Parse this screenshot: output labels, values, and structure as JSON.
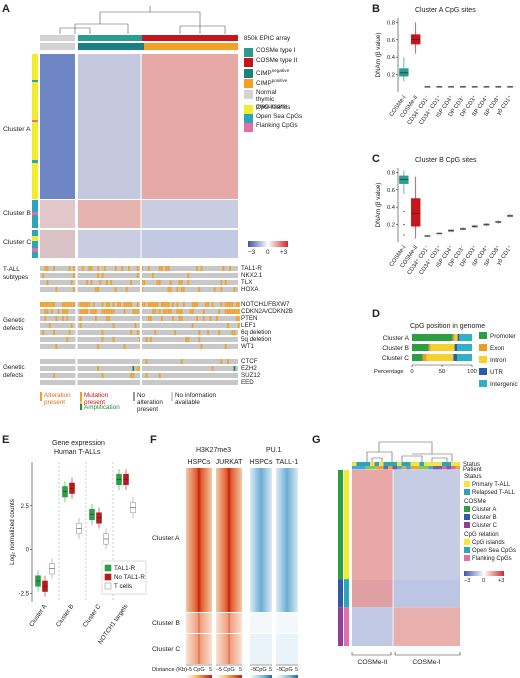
{
  "panels": {
    "A": "A",
    "B": "B",
    "C": "C",
    "D": "D",
    "E": "E",
    "F": "F",
    "G": "G"
  },
  "panelA": {
    "array_label": "850k EPIC array",
    "legend": [
      {
        "label": "COSMe type I",
        "color": "#2a9d8f"
      },
      {
        "label": "COSMe type II",
        "color": "#c5161d"
      },
      {
        "label": "CIMP",
        "sup": "negative",
        "color": "#1b7f83"
      },
      {
        "label": "CIMP",
        "sup": "positive",
        "color": "#f4a025"
      },
      {
        "label": "Normal thymic precursors",
        "color": "#d3d3d3"
      },
      {
        "label": "CpG islands",
        "color": "#f3ec2e"
      },
      {
        "label": "Open Sea CpGs",
        "color": "#2aa6b8"
      },
      {
        "label": "Flanking CpGs",
        "color": "#e36fa8"
      }
    ],
    "clusters": [
      "Cluster A",
      "Cluster B",
      "Cluster C"
    ],
    "scale_min": "−3",
    "scale_mid": "0",
    "scale_max": "+3",
    "group_subtypes": "T-ALL subtypes",
    "group_defects1": "Genetic defects",
    "group_defects2": "Genetic defects",
    "subtype_rows": [
      "TAL1-R",
      "NKX2.1",
      "TLX",
      "HOXA"
    ],
    "defect_rows1": [
      "NOTCH1/FBXW7",
      "CDKN2A/CDKN2B",
      "PTEN",
      "LEF1",
      "6q deletion",
      "5q deletion",
      "WT1"
    ],
    "defect_rows2": [
      "CTCF",
      "EZH2",
      "SUZ12",
      "EED"
    ],
    "bottom_legend": [
      "Alteration present",
      "Mutation present",
      "Amplification",
      "No alteration present",
      "No information available"
    ]
  },
  "panelB": {
    "title": "Cluster A CpG sites",
    "ylabel": "DNAm (β value)"
  },
  "panelC": {
    "title": "Cluster B CpG sites",
    "ylabel": "DNAm (β value)"
  },
  "boxplot_categories": [
    "COSMe-I",
    "COSMe-II",
    "CD34⁺ CD1⁻",
    "CD34⁺ CD1⁺",
    "ISP CD4⁺",
    "DP CD3⁻",
    "DP CD3⁺",
    "SP CD4⁺",
    "SP CD8⁺",
    "γδ CD1⁺"
  ],
  "panelD": {
    "title": "CpG position in genome",
    "xlabel": "Percentage",
    "categories": [
      "Promoter",
      "Exon",
      "Intron",
      "UTR",
      "Intergenic"
    ],
    "colors": [
      "#2e9e44",
      "#f29a1f",
      "#f6d02f",
      "#2a5ca8",
      "#32b1c4"
    ]
  },
  "panelE": {
    "title1": "Gene expression",
    "title2": "Human T-ALLs",
    "ylabel": "Log₂ normalized counts",
    "categories": [
      "Cluster A",
      "Cluster B",
      "Cluster C",
      "NOTCH1 targets"
    ],
    "series": [
      "TAL1-R",
      "No TAL1-R",
      "T cells"
    ],
    "colors": [
      "#2e9e44",
      "#b51d1d",
      "#9a9a9a"
    ]
  },
  "panelF": {
    "mark1": "H3K27me3",
    "mark2": "PU.1",
    "cells": [
      "HSPCs",
      "JURKAT",
      "HSPCs",
      "TALL-1"
    ],
    "clusters": [
      "Cluster A",
      "Cluster B",
      "Cluster C"
    ],
    "distance_label": "Distance (Kb)",
    "cpg": "CpG",
    "tick_neg": "−5",
    "tick_pos": "5",
    "scale1": [
      "0",
      "0.8"
    ],
    "scale2": [
      "0",
      "0.8"
    ],
    "scale3": [
      "0",
      "0.35"
    ],
    "scale4": [
      "0",
      "0.16"
    ]
  },
  "panelG": {
    "track_status": "Status",
    "track_patient": "Patient",
    "legend_status_title": "Status",
    "legend_status": [
      "Primary T-ALL",
      "Relapsed T-ALL"
    ],
    "legend_cosme_title": "COSMe",
    "legend_cosme": [
      "Cluster A",
      "Cluster B",
      "Cluster C"
    ],
    "legend_cpg_title": "CpG relation",
    "legend_cpg": [
      "CpG islands",
      "Open Sea CpGs",
      "Flanking CpGs"
    ],
    "scale_min": "−3",
    "scale_mid": "0",
    "scale_max": "+3",
    "bottom": [
      "COSMe-II",
      "COSMe-I"
    ],
    "status_colors": [
      "#f1e640",
      "#2aa6b8"
    ],
    "cosme_colors": [
      "#2e9e44",
      "#2a5ca8",
      "#8e3f98"
    ],
    "cpg_colors": [
      "#f3ec2e",
      "#2aa6b8",
      "#e36fa8"
    ]
  },
  "chart_data": [
    {
      "panel": "B",
      "type": "box",
      "title": "Cluster A CpG sites",
      "ylabel": "DNAm (β value)",
      "ylim": [
        0,
        0.85
      ],
      "categories": [
        "COSMe-I",
        "COSMe-II",
        "CD34⁺ CD1⁻",
        "CD34⁺ CD1⁺",
        "ISP CD4⁺",
        "DP CD3⁻",
        "DP CD3⁺",
        "SP CD4⁺",
        "SP CD8⁺",
        "γδ CD1⁺"
      ],
      "colors": [
        "#2a9d8f",
        "#c5161d",
        "#8a8a8a",
        "#8a8a8a",
        "#8a8a8a",
        "#8a8a8a",
        "#8a8a8a",
        "#8a8a8a",
        "#8a8a8a",
        "#8a8a8a"
      ],
      "boxes": [
        [
          0.12,
          0.18,
          0.22,
          0.27,
          0.4
        ],
        [
          0.44,
          0.55,
          0.6,
          0.66,
          0.8
        ],
        [
          0.05,
          0.055,
          0.06,
          0.065,
          0.07
        ],
        [
          0.05,
          0.055,
          0.06,
          0.065,
          0.07
        ],
        [
          0.05,
          0.055,
          0.06,
          0.065,
          0.07
        ],
        [
          0.05,
          0.055,
          0.06,
          0.065,
          0.07
        ],
        [
          0.05,
          0.055,
          0.06,
          0.065,
          0.07
        ],
        [
          0.05,
          0.055,
          0.06,
          0.065,
          0.07
        ],
        [
          0.05,
          0.055,
          0.06,
          0.065,
          0.07
        ],
        [
          0.05,
          0.055,
          0.06,
          0.065,
          0.07
        ]
      ],
      "yticks": [
        0.2,
        0.4,
        0.6,
        0.8
      ]
    },
    {
      "panel": "C",
      "type": "box",
      "title": "Cluster B CpG sites",
      "ylabel": "DNAm (β value)",
      "ylim": [
        0,
        0.85
      ],
      "categories": [
        "COSMe-I",
        "COSMe-II",
        "CD34⁺ CD1⁻",
        "CD34⁺ CD1⁺",
        "ISP CD4⁺",
        "DP CD3⁻",
        "DP CD3⁺",
        "SP CD4⁺",
        "SP CD8⁺",
        "γδ CD1⁺"
      ],
      "colors": [
        "#2a9d8f",
        "#c5161d",
        "#8a8a8a",
        "#8a8a8a",
        "#8a8a8a",
        "#8a8a8a",
        "#8a8a8a",
        "#8a8a8a",
        "#8a8a8a",
        "#8a8a8a"
      ],
      "boxes": [
        [
          0.55,
          0.67,
          0.72,
          0.76,
          0.82
        ],
        [
          0.04,
          0.18,
          0.33,
          0.5,
          0.75
        ],
        [
          0.06,
          0.065,
          0.07,
          0.075,
          0.08
        ],
        [
          0.09,
          0.095,
          0.1,
          0.105,
          0.11
        ],
        [
          0.11,
          0.12,
          0.13,
          0.14,
          0.15
        ],
        [
          0.13,
          0.14,
          0.15,
          0.16,
          0.17
        ],
        [
          0.16,
          0.17,
          0.18,
          0.19,
          0.2
        ],
        [
          0.18,
          0.19,
          0.2,
          0.21,
          0.22
        ],
        [
          0.21,
          0.22,
          0.23,
          0.24,
          0.25
        ],
        [
          0.28,
          0.29,
          0.3,
          0.31,
          0.32
        ]
      ],
      "yticks": [
        0.2,
        0.4,
        0.6,
        0.8
      ]
    },
    {
      "panel": "D",
      "type": "bar",
      "stacked": true,
      "title": "CpG position in genome",
      "xlabel": "Percentage",
      "xlim": [
        0,
        100
      ],
      "categories": [
        "Cluster A",
        "Cluster B",
        "Cluster C"
      ],
      "series": [
        {
          "name": "Promoter",
          "values": [
            68,
            28,
            18
          ]
        },
        {
          "name": "Exon",
          "values": [
            3,
            3,
            6
          ]
        },
        {
          "name": "Intron",
          "values": [
            5,
            40,
            45
          ]
        },
        {
          "name": "UTR",
          "values": [
            3,
            4,
            6
          ]
        },
        {
          "name": "Intergenic",
          "values": [
            21,
            25,
            25
          ]
        }
      ],
      "xticks": [
        0,
        50,
        100
      ]
    },
    {
      "panel": "E",
      "type": "box",
      "title": "Gene expression Human T-ALLs",
      "ylabel": "Log₂ normalized counts",
      "ylim": [
        -3,
        5
      ],
      "categories": [
        "Cluster A",
        "Cluster B",
        "Cluster C",
        "NOTCH1 targets"
      ],
      "series": [
        {
          "name": "TAL1-R",
          "medians": [
            -1.8,
            3.3,
            2.0,
            4.0
          ]
        },
        {
          "name": "No TAL1-R",
          "medians": [
            -2.1,
            3.5,
            1.8,
            4.0
          ]
        },
        {
          "name": "T cells",
          "medians": [
            -1.1,
            1.2,
            0.6,
            2.4
          ]
        }
      ],
      "yticks": [
        -2.5,
        0,
        2.5
      ]
    }
  ]
}
